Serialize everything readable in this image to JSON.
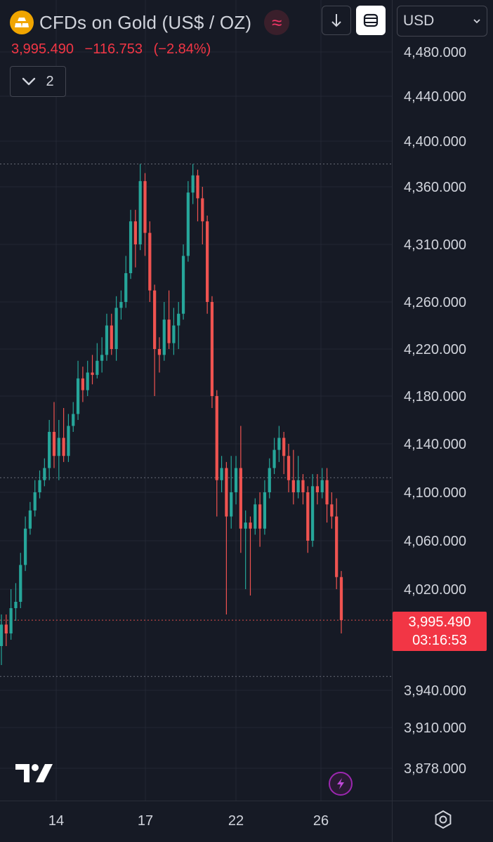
{
  "header": {
    "title": "CFDs on Gold (US$ / OZ)",
    "price": "3,995.490",
    "change": "−116.753",
    "change_pct": "(−2.84%)",
    "collapse_count": "2"
  },
  "toolbar": {
    "currency": "USD",
    "icons": [
      "gold-icon",
      "wave-icon",
      "download-icon",
      "layout-icon",
      "chevron-down-icon"
    ]
  },
  "price_label": {
    "price": "3,995.490",
    "countdown": "03:16:53"
  },
  "colors": {
    "up": "#26a69a",
    "down": "#ef5350",
    "background": "#161a25",
    "grid": "#2a2e39",
    "text": "#d1d4dc",
    "accent_red": "#f23645"
  },
  "chart_data": {
    "type": "candlestick",
    "yticks": [
      {
        "value": 4480,
        "label": "4,480.000"
      },
      {
        "value": 4440,
        "label": "4,440.000"
      },
      {
        "value": 4400,
        "label": "4,400.000"
      },
      {
        "value": 4360,
        "label": "4,360.000"
      },
      {
        "value": 4310,
        "label": "4,310.000"
      },
      {
        "value": 4260,
        "label": "4,260.000"
      },
      {
        "value": 4220,
        "label": "4,220.000"
      },
      {
        "value": 4180,
        "label": "4,180.000"
      },
      {
        "value": 4140,
        "label": "4,140.000"
      },
      {
        "value": 4100,
        "label": "4,100.000"
      },
      {
        "value": 4060,
        "label": "4,060.000"
      },
      {
        "value": 4020,
        "label": "4,020.000"
      },
      {
        "value": 3940,
        "label": "3,940.000"
      },
      {
        "value": 3910,
        "label": "3,910.000"
      },
      {
        "value": 3878,
        "label": "3,878.000"
      }
    ],
    "xticks": [
      "14",
      "17",
      "22",
      "26"
    ],
    "reference_lines": [
      4380,
      4112,
      3995.49,
      3951
    ],
    "last_price": 3995.49,
    "candles": [
      [
        3975,
        3992,
        3960,
        4000
      ],
      [
        3992,
        3985,
        3975,
        4000
      ],
      [
        3985,
        4005,
        3980,
        4020
      ],
      [
        4005,
        4010,
        3995,
        4025
      ],
      [
        4010,
        4040,
        4005,
        4050
      ],
      [
        4040,
        4070,
        4035,
        4080
      ],
      [
        4070,
        4085,
        4065,
        4092
      ],
      [
        4085,
        4100,
        4080,
        4110
      ],
      [
        4100,
        4110,
        4095,
        4118
      ],
      [
        4110,
        4120,
        4105,
        4128
      ],
      [
        4120,
        4150,
        4110,
        4160
      ],
      [
        4150,
        4130,
        4120,
        4175
      ],
      [
        4130,
        4145,
        4110,
        4160
      ],
      [
        4145,
        4130,
        4125,
        4170
      ],
      [
        4130,
        4155,
        4125,
        4165
      ],
      [
        4155,
        4165,
        4150,
        4175
      ],
      [
        4165,
        4195,
        4160,
        4210
      ],
      [
        4195,
        4185,
        4175,
        4205
      ],
      [
        4185,
        4200,
        4180,
        4210
      ],
      [
        4200,
        4198,
        4190,
        4215
      ],
      [
        4198,
        4210,
        4195,
        4225
      ],
      [
        4210,
        4215,
        4200,
        4230
      ],
      [
        4215,
        4240,
        4210,
        4250
      ],
      [
        4240,
        4220,
        4215,
        4250
      ],
      [
        4220,
        4255,
        4210,
        4265
      ],
      [
        4255,
        4260,
        4245,
        4270
      ],
      [
        4260,
        4285,
        4255,
        4300
      ],
      [
        4285,
        4330,
        4280,
        4340
      ],
      [
        4330,
        4310,
        4290,
        4340
      ],
      [
        4310,
        4365,
        4305,
        4380
      ],
      [
        4365,
        4320,
        4300,
        4372
      ],
      [
        4320,
        4270,
        4260,
        4330
      ],
      [
        4270,
        4220,
        4180,
        4275
      ],
      [
        4220,
        4215,
        4200,
        4230
      ],
      [
        4215,
        4245,
        4210,
        4260
      ],
      [
        4245,
        4225,
        4220,
        4270
      ],
      [
        4225,
        4240,
        4215,
        4255
      ],
      [
        4240,
        4250,
        4220,
        4260
      ],
      [
        4250,
        4300,
        4245,
        4310
      ],
      [
        4300,
        4355,
        4295,
        4365
      ],
      [
        4355,
        4370,
        4345,
        4380
      ],
      [
        4370,
        4350,
        4330,
        4375
      ],
      [
        4350,
        4330,
        4310,
        4360
      ],
      [
        4330,
        4260,
        4250,
        4335
      ],
      [
        4260,
        4180,
        4170,
        4265
      ],
      [
        4180,
        4110,
        4080,
        4185
      ],
      [
        4110,
        4120,
        4100,
        4130
      ],
      [
        4120,
        4080,
        4000,
        4125
      ],
      [
        4080,
        4100,
        4070,
        4130
      ],
      [
        4100,
        4120,
        4090,
        4130
      ],
      [
        4120,
        4070,
        4050,
        4155
      ],
      [
        4070,
        4075,
        4020,
        4085
      ],
      [
        4075,
        4070,
        4015,
        4080
      ],
      [
        4070,
        4090,
        4065,
        4095
      ],
      [
        4090,
        4070,
        4055,
        4100
      ],
      [
        4070,
        4100,
        4065,
        4110
      ],
      [
        4100,
        4120,
        4095,
        4128
      ],
      [
        4120,
        4135,
        4115,
        4145
      ],
      [
        4135,
        4145,
        4125,
        4155
      ],
      [
        4145,
        4130,
        4115,
        4150
      ],
      [
        4130,
        4110,
        4100,
        4140
      ],
      [
        4110,
        4100,
        4090,
        4135
      ],
      [
        4100,
        4110,
        4095,
        4130
      ],
      [
        4110,
        4100,
        4090,
        4115
      ],
      [
        4100,
        4060,
        4050,
        4105
      ],
      [
        4060,
        4105,
        4055,
        4115
      ],
      [
        4105,
        4100,
        4090,
        4115
      ],
      [
        4100,
        4110,
        4095,
        4120
      ],
      [
        4110,
        4090,
        4075,
        4120
      ],
      [
        4090,
        4080,
        4070,
        4100
      ],
      [
        4080,
        4030,
        4020,
        4095
      ],
      [
        4030,
        3995.49,
        3985,
        4035
      ]
    ]
  }
}
